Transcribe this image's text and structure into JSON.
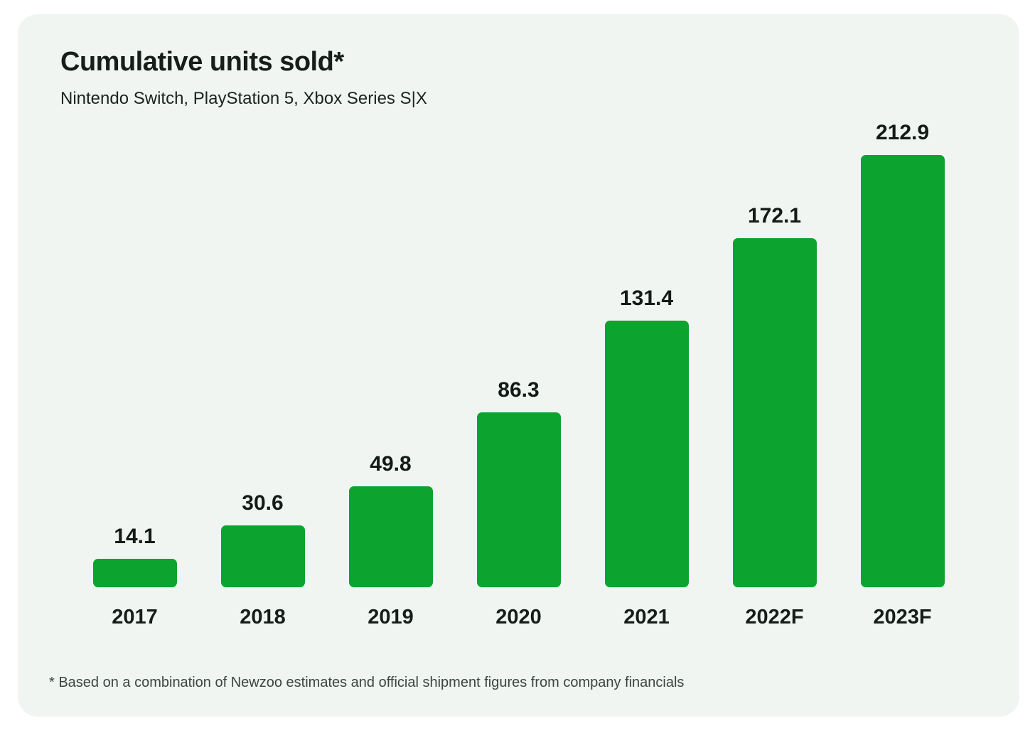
{
  "header": {
    "title": "Cumulative units sold*",
    "subtitle": "Nintendo Switch, PlayStation 5, Xbox Series S|X"
  },
  "footnote": "* Based on a combination of Newzoo estimates and official shipment figures from company financials",
  "colors": {
    "bar": "#0ca32e",
    "card_background": "#f0f5f1",
    "text": "#161d1a",
    "footnote_text": "#3c4541"
  },
  "chart_data": {
    "type": "bar",
    "title": "Cumulative units sold*",
    "subtitle": "Nintendo Switch, PlayStation 5, Xbox Series S|X",
    "categories": [
      "2017",
      "2018",
      "2019",
      "2020",
      "2021",
      "2022F",
      "2023F"
    ],
    "values": [
      14.1,
      30.6,
      49.8,
      86.3,
      131.4,
      172.1,
      212.9
    ],
    "data_labels": [
      "14.1",
      "30.6",
      "49.8",
      "86.3",
      "131.4",
      "172.1",
      "212.9"
    ],
    "xlabel": "",
    "ylabel": "",
    "ylim": [
      0,
      220
    ],
    "grid": false,
    "legend": false,
    "bar_color": "#0ca32e",
    "annotation": "* Based on a combination of Newzoo estimates and official shipment figures from company financials"
  }
}
